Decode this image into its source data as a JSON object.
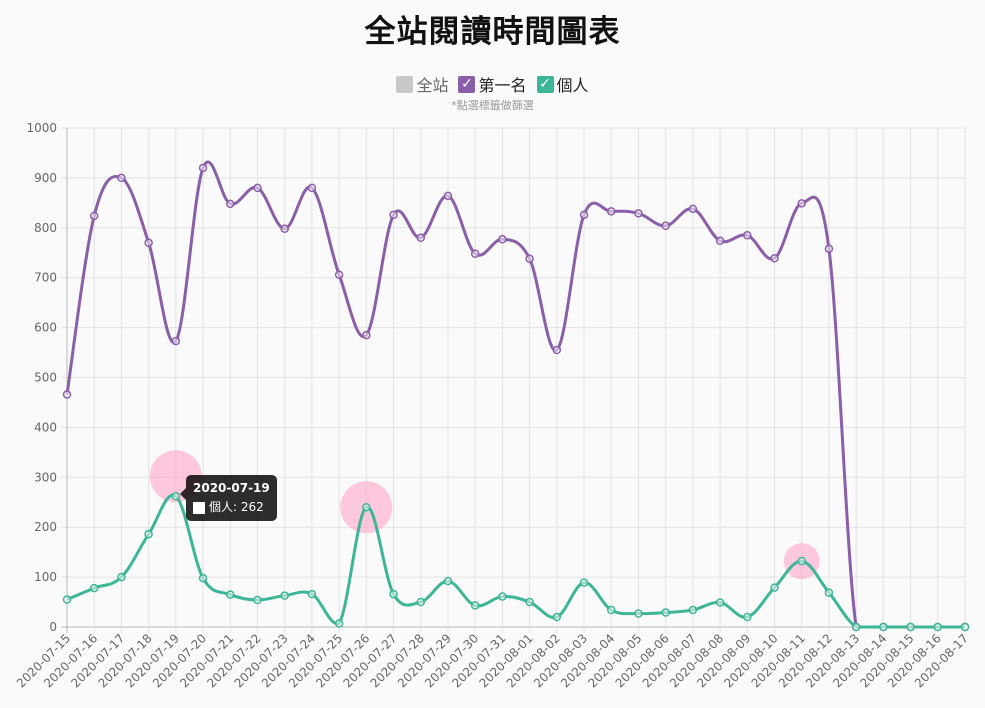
{
  "title": "全站閱讀時間圖表",
  "hint": "*點選標籤做篩選",
  "legend": [
    {
      "label": "全站",
      "checked": false,
      "color": "#c8c8c8"
    },
    {
      "label": "第一名",
      "checked": true,
      "color": "#8a5ea8"
    },
    {
      "label": "個人",
      "checked": true,
      "color": "#3db597"
    }
  ],
  "tooltip": {
    "title": "2020-07-19",
    "label": "個人: 262"
  },
  "chart_data": {
    "type": "line",
    "y_ticks": [
      "0",
      "100",
      "200",
      "300",
      "400",
      "500",
      "600",
      "700",
      "800",
      "900",
      "1000"
    ],
    "ylim": [
      0,
      1000
    ],
    "x": [
      "2020-07-15",
      "2020-07-16",
      "2020-07-17",
      "2020-07-18",
      "2020-07-19",
      "2020-07-20",
      "2020-07-21",
      "2020-07-22",
      "2020-07-23",
      "2020-07-24",
      "2020-07-25",
      "2020-07-26",
      "2020-07-27",
      "2020-07-28",
      "2020-07-29",
      "2020-07-30",
      "2020-07-31",
      "2020-08-01",
      "2020-08-02",
      "2020-08-03",
      "2020-08-04",
      "2020-08-05",
      "2020-08-06",
      "2020-08-07",
      "2020-08-08",
      "2020-08-09",
      "2020-08-10",
      "2020-08-11",
      "2020-08-12",
      "2020-08-13",
      "2020-08-14",
      "2020-08-15",
      "2020-08-16",
      "2020-08-17"
    ],
    "grid": true,
    "series": [
      {
        "name": "第一名",
        "color": "#8a5ea8",
        "values": [
          466,
          824,
          900,
          770,
          573,
          920,
          848,
          880,
          798,
          880,
          706,
          585,
          826,
          780,
          864,
          748,
          777,
          738,
          555,
          826,
          833,
          829,
          804,
          838,
          774,
          785,
          739,
          849,
          758,
          0,
          0,
          0,
          0,
          0
        ]
      },
      {
        "name": "個人",
        "color": "#3db597",
        "values": [
          55,
          78,
          100,
          186,
          262,
          98,
          65,
          54,
          63,
          66,
          7,
          240,
          66,
          50,
          92,
          43,
          61,
          50,
          20,
          89,
          34,
          27,
          29,
          34,
          49,
          20,
          79,
          132,
          69,
          0,
          0,
          0,
          0,
          0
        ]
      }
    ]
  }
}
